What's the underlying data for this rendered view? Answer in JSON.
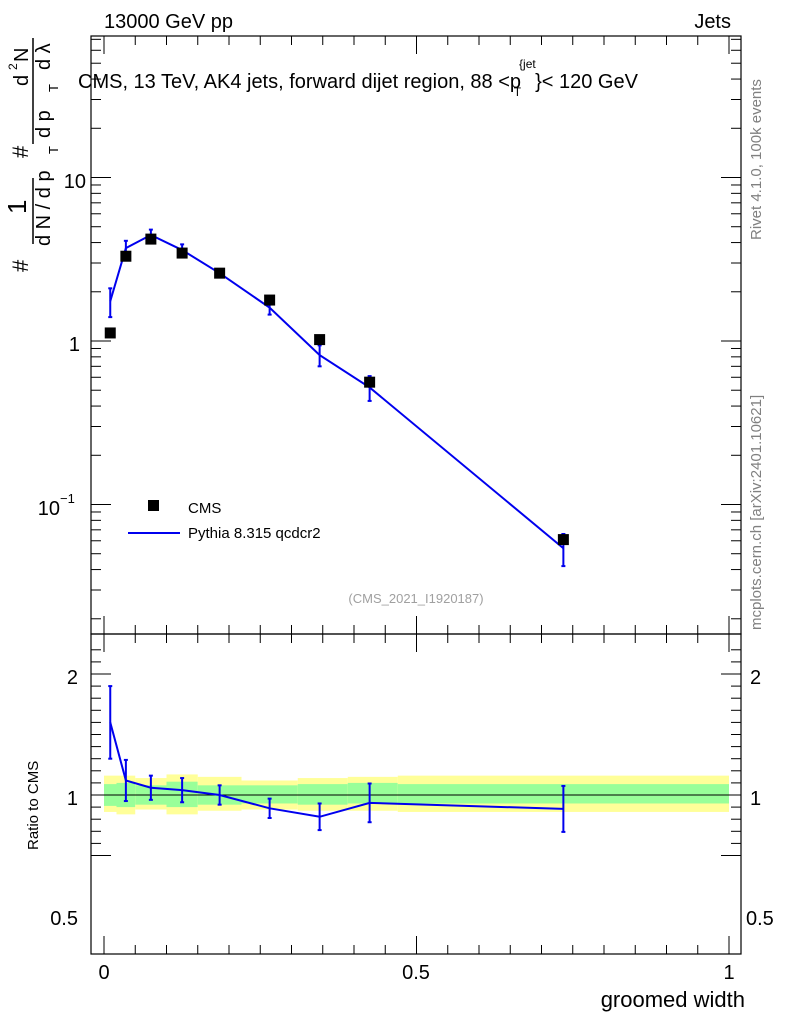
{
  "header": {
    "left": "13000 GeV pp",
    "right": "Jets",
    "title_main": "CMS, 13 TeV, AK4 jets, forward dijet region, 88 <p",
    "title_sup": "{jet",
    "title_sub": "T",
    "title_end": "}< 120 GeV",
    "analysis_id": "(CMS_2021_I1920187)"
  },
  "side": {
    "rivet": "Rivet 4.1.0,  100k events",
    "mcplots": "mcplots.cern.ch [arXiv:2401.10621]"
  },
  "colors": {
    "mc": "#0000ee",
    "band_outer": "#ffff99",
    "band_inner": "#99ff99",
    "data": "#000000"
  },
  "chart_data": [
    {
      "type": "scatter",
      "name": "main",
      "yscale": "log",
      "xlim": [
        0,
        1
      ],
      "ylim": [
        0.02,
        75
      ],
      "ytick_labels": [
        "10",
        "1",
        "10",
        "−1",
        "10"
      ],
      "ylabel": "# 1 / dN/dp_T # d^2N/dp_T dλ",
      "ylabel_parts": [
        "#",
        "1",
        "d N / d p",
        "T",
        "#",
        "d p",
        "T",
        "d λ",
        "d",
        "2",
        "N"
      ],
      "legend": [
        "CMS",
        "Pythia 8.315 qcdcr2"
      ],
      "legend_position": "lower-left",
      "series": [
        {
          "name": "CMS",
          "kind": "markers",
          "x": [
            0.01,
            0.035,
            0.075,
            0.125,
            0.185,
            0.265,
            0.345,
            0.425,
            0.735
          ],
          "y": [
            1.12,
            3.3,
            4.2,
            3.45,
            2.6,
            1.78,
            1.02,
            0.56,
            0.061
          ]
        },
        {
          "name": "Pythia 8.315 qcdcr2",
          "kind": "line",
          "x": [
            0.01,
            0.035,
            0.075,
            0.125,
            0.185,
            0.265,
            0.345,
            0.425,
            0.735
          ],
          "y": [
            1.75,
            3.7,
            4.45,
            3.6,
            2.6,
            1.6,
            0.82,
            0.52,
            0.054
          ],
          "yerr": [
            0.35,
            0.4,
            0.35,
            0.3,
            0.15,
            0.15,
            0.12,
            0.09,
            0.012
          ]
        }
      ]
    },
    {
      "type": "line",
      "name": "ratio",
      "xlim": [
        0,
        1
      ],
      "ylim": [
        0.4,
        2.3
      ],
      "xlabel": "groomed width",
      "ylabel": "Ratio to CMS",
      "xtick_labels": [
        "0",
        "0.5",
        "1"
      ],
      "ytick_labels": [
        "0.5",
        "1",
        "2"
      ],
      "series": [
        {
          "name": "Pythia 8.315 qcdcr2",
          "x": [
            0.01,
            0.035,
            0.075,
            0.125,
            0.185,
            0.265,
            0.345,
            0.425,
            0.735
          ],
          "y": [
            1.6,
            1.12,
            1.06,
            1.04,
            1.0,
            0.89,
            0.82,
            0.935,
            0.885
          ],
          "yerr": [
            0.3,
            0.17,
            0.1,
            0.1,
            0.08,
            0.08,
            0.11,
            0.16,
            0.19
          ]
        }
      ],
      "bands": {
        "edges": [
          0.0,
          0.02,
          0.05,
          0.1,
          0.15,
          0.22,
          0.31,
          0.39,
          0.47,
          1.0
        ],
        "inner": [
          [
            0.91,
            1.09
          ],
          [
            0.9,
            1.1
          ],
          [
            0.92,
            1.08
          ],
          [
            0.9,
            1.11
          ],
          [
            0.92,
            1.08
          ],
          [
            0.93,
            1.08
          ],
          [
            0.92,
            1.09
          ],
          [
            0.93,
            1.1
          ],
          [
            0.93,
            1.09
          ]
        ],
        "outer": [
          [
            0.86,
            1.16
          ],
          [
            0.84,
            1.16
          ],
          [
            0.88,
            1.14
          ],
          [
            0.84,
            1.17
          ],
          [
            0.87,
            1.15
          ],
          [
            0.88,
            1.12
          ],
          [
            0.87,
            1.14
          ],
          [
            0.87,
            1.15
          ],
          [
            0.86,
            1.16
          ]
        ]
      }
    }
  ]
}
